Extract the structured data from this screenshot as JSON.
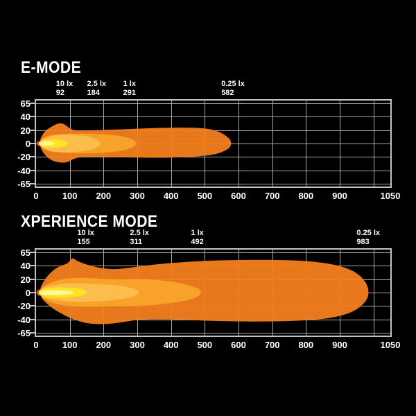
{
  "page": {
    "background": "#000000",
    "text_color": "#ffffff",
    "grid_color": "#a9a9a9",
    "axis_color": "#c3c3c3"
  },
  "chart_data": [
    {
      "type": "area",
      "title": "E-MODE",
      "xlim": [
        0,
        1050
      ],
      "x_ticks": [
        0,
        100,
        200,
        300,
        400,
        500,
        600,
        700,
        800,
        900,
        1050
      ],
      "y_ticks": [
        65,
        40,
        20,
        0,
        -20,
        -40,
        -65
      ],
      "grid": true,
      "legend": "none",
      "lux_markers": [
        {
          "label": "10 lx",
          "distance": 92
        },
        {
          "label": "2.5 lx",
          "distance": 184
        },
        {
          "label": "1 lx",
          "distance": 291
        },
        {
          "label": "0.25 lx",
          "distance": 582
        }
      ],
      "contours": [
        {
          "name": "isolux-0.25lx",
          "color": "#F5811E",
          "points": [
            [
              10,
              3
            ],
            [
              18,
              14
            ],
            [
              30,
              22
            ],
            [
              48,
              28
            ],
            [
              62,
              32
            ],
            [
              75,
              33
            ],
            [
              88,
              30
            ],
            [
              100,
              24
            ],
            [
              115,
              21
            ],
            [
              150,
              21
            ],
            [
              200,
              22
            ],
            [
              260,
              23
            ],
            [
              340,
              25
            ],
            [
              430,
              26
            ],
            [
              500,
              25
            ],
            [
              540,
              20
            ],
            [
              565,
              12
            ],
            [
              578,
              5
            ],
            [
              578,
              -5
            ],
            [
              560,
              -12
            ],
            [
              530,
              -18
            ],
            [
              480,
              -21
            ],
            [
              400,
              -23
            ],
            [
              320,
              -23
            ],
            [
              240,
              -22
            ],
            [
              170,
              -21
            ],
            [
              130,
              -22
            ],
            [
              110,
              -25
            ],
            [
              95,
              -30
            ],
            [
              80,
              -31
            ],
            [
              60,
              -30
            ],
            [
              42,
              -26
            ],
            [
              25,
              -18
            ],
            [
              14,
              -8
            ]
          ]
        },
        {
          "name": "isolux-1lx",
          "color": "#F9A52B",
          "points": [
            [
              10,
              4
            ],
            [
              30,
              12
            ],
            [
              60,
              15
            ],
            [
              100,
              16
            ],
            [
              150,
              16
            ],
            [
              200,
              15
            ],
            [
              240,
              13
            ],
            [
              270,
              10
            ],
            [
              290,
              6
            ],
            [
              296,
              2
            ],
            [
              296,
              -2
            ],
            [
              285,
              -7
            ],
            [
              260,
              -11
            ],
            [
              220,
              -14
            ],
            [
              170,
              -16
            ],
            [
              120,
              -16
            ],
            [
              70,
              -15
            ],
            [
              35,
              -12
            ],
            [
              12,
              -5
            ]
          ]
        },
        {
          "name": "isolux-2.5lx",
          "color": "#FBBE4E",
          "points": [
            [
              10,
              3
            ],
            [
              25,
              9
            ],
            [
              50,
              13
            ],
            [
              80,
              14
            ],
            [
              110,
              14
            ],
            [
              140,
              13
            ],
            [
              165,
              10
            ],
            [
              183,
              6
            ],
            [
              190,
              2
            ],
            [
              190,
              -2
            ],
            [
              180,
              -7
            ],
            [
              160,
              -11
            ],
            [
              130,
              -13
            ],
            [
              95,
              -14
            ],
            [
              60,
              -14
            ],
            [
              30,
              -11
            ],
            [
              12,
              -4
            ]
          ]
        },
        {
          "name": "origin-hotspot-edge",
          "color": "#E8611C",
          "points": [
            [
              2,
              4
            ],
            [
              20,
              4
            ],
            [
              20,
              -4
            ],
            [
              2,
              -4
            ]
          ]
        },
        {
          "name": "isolux-10lx",
          "color": "#FFE61F",
          "points": [
            [
              8,
              2
            ],
            [
              18,
              5
            ],
            [
              35,
              7
            ],
            [
              55,
              7
            ],
            [
              75,
              6
            ],
            [
              88,
              4
            ],
            [
              95,
              1.5
            ],
            [
              95,
              -1.5
            ],
            [
              87,
              -4
            ],
            [
              72,
              -6
            ],
            [
              50,
              -7
            ],
            [
              30,
              -7
            ],
            [
              15,
              -5
            ],
            [
              8,
              -2
            ]
          ]
        },
        {
          "name": "hotspot-core",
          "color": "#FFF8A8",
          "points": [
            [
              8,
              1
            ],
            [
              18,
              3
            ],
            [
              32,
              3.5
            ],
            [
              45,
              3
            ],
            [
              54,
              1.5
            ],
            [
              54,
              -1.5
            ],
            [
              44,
              -3
            ],
            [
              30,
              -3.5
            ],
            [
              16,
              -3
            ],
            [
              8,
              -1
            ]
          ]
        }
      ]
    },
    {
      "type": "area",
      "title": "XPERIENCE MODE",
      "xlim": [
        0,
        1050
      ],
      "x_ticks": [
        0,
        100,
        200,
        300,
        400,
        500,
        600,
        700,
        800,
        900,
        1050
      ],
      "y_ticks": [
        65,
        40,
        20,
        0,
        -20,
        -40,
        -65
      ],
      "grid": true,
      "legend": "none",
      "lux_markers": [
        {
          "label": "10 lx",
          "distance": 155
        },
        {
          "label": "2.5 lx",
          "distance": 311
        },
        {
          "label": "1 lx",
          "distance": 492
        },
        {
          "label": "0.25 lx",
          "distance": 983
        }
      ],
      "contours": [
        {
          "name": "isolux-0.25lx",
          "color": "#F5811E",
          "points": [
            [
              10,
              4
            ],
            [
              20,
              16
            ],
            [
              35,
              28
            ],
            [
              55,
              38
            ],
            [
              75,
              44
            ],
            [
              95,
              47
            ],
            [
              108,
              57
            ],
            [
              118,
              52
            ],
            [
              140,
              47
            ],
            [
              170,
              42
            ],
            [
              210,
              38
            ],
            [
              250,
              38
            ],
            [
              300,
              42
            ],
            [
              360,
              46
            ],
            [
              430,
              49
            ],
            [
              520,
              52
            ],
            [
              620,
              53
            ],
            [
              720,
              53
            ],
            [
              810,
              51
            ],
            [
              880,
              46
            ],
            [
              930,
              38
            ],
            [
              960,
              28
            ],
            [
              978,
              16
            ],
            [
              985,
              6
            ],
            [
              985,
              -6
            ],
            [
              975,
              -16
            ],
            [
              950,
              -28
            ],
            [
              910,
              -37
            ],
            [
              850,
              -43
            ],
            [
              760,
              -46
            ],
            [
              650,
              -47
            ],
            [
              540,
              -46
            ],
            [
              440,
              -44
            ],
            [
              360,
              -43
            ],
            [
              300,
              -44
            ],
            [
              255,
              -48
            ],
            [
              210,
              -51
            ],
            [
              165,
              -51
            ],
            [
              130,
              -47
            ],
            [
              100,
              -41
            ],
            [
              75,
              -34
            ],
            [
              50,
              -26
            ],
            [
              30,
              -17
            ],
            [
              15,
              -8
            ]
          ]
        },
        {
          "name": "isolux-1lx",
          "color": "#F9A52B",
          "points": [
            [
              10,
              5
            ],
            [
              35,
              15
            ],
            [
              70,
              21
            ],
            [
              110,
              24
            ],
            [
              150,
              24
            ],
            [
              200,
              22
            ],
            [
              250,
              21
            ],
            [
              300,
              22
            ],
            [
              350,
              21
            ],
            [
              400,
              18
            ],
            [
              440,
              14
            ],
            [
              470,
              9
            ],
            [
              488,
              4
            ],
            [
              488,
              -4
            ],
            [
              470,
              -9
            ],
            [
              435,
              -14
            ],
            [
              390,
              -18
            ],
            [
              330,
              -21
            ],
            [
              270,
              -22
            ],
            [
              210,
              -22
            ],
            [
              150,
              -23
            ],
            [
              100,
              -22
            ],
            [
              60,
              -19
            ],
            [
              30,
              -13
            ],
            [
              12,
              -6
            ]
          ]
        },
        {
          "name": "isolux-2.5lx",
          "color": "#FBBE4E",
          "points": [
            [
              10,
              4
            ],
            [
              30,
              10
            ],
            [
              60,
              13
            ],
            [
              95,
              15
            ],
            [
              135,
              15
            ],
            [
              175,
              14
            ],
            [
              215,
              13
            ],
            [
              250,
              11
            ],
            [
              280,
              8
            ],
            [
              300,
              4
            ],
            [
              305,
              1
            ],
            [
              305,
              -1
            ],
            [
              295,
              -5
            ],
            [
              270,
              -9
            ],
            [
              235,
              -12
            ],
            [
              195,
              -14
            ],
            [
              150,
              -15
            ],
            [
              105,
              -15
            ],
            [
              65,
              -13
            ],
            [
              35,
              -10
            ],
            [
              12,
              -5
            ]
          ]
        },
        {
          "name": "origin-hotspot-edge",
          "color": "#E8611C",
          "points": [
            [
              2,
              5
            ],
            [
              20,
              5
            ],
            [
              20,
              -5
            ],
            [
              2,
              -5
            ]
          ]
        },
        {
          "name": "isolux-10lx",
          "color": "#FFE61F",
          "points": [
            [
              8,
              3
            ],
            [
              20,
              6
            ],
            [
              40,
              8
            ],
            [
              65,
              8.5
            ],
            [
              90,
              8
            ],
            [
              115,
              7
            ],
            [
              138,
              5
            ],
            [
              150,
              2.5
            ],
            [
              150,
              -2.5
            ],
            [
              135,
              -5
            ],
            [
              110,
              -7
            ],
            [
              85,
              -8
            ],
            [
              60,
              -8.5
            ],
            [
              35,
              -8
            ],
            [
              18,
              -6
            ],
            [
              8,
              -3
            ]
          ]
        },
        {
          "name": "hotspot-core",
          "color": "#FFF8A8",
          "points": [
            [
              8,
              1.5
            ],
            [
              20,
              3.5
            ],
            [
              40,
              4
            ],
            [
              60,
              4
            ],
            [
              80,
              3.5
            ],
            [
              100,
              2.5
            ],
            [
              112,
              1
            ],
            [
              112,
              -1
            ],
            [
              98,
              -2.5
            ],
            [
              78,
              -3.5
            ],
            [
              55,
              -4
            ],
            [
              35,
              -4
            ],
            [
              18,
              -3.5
            ],
            [
              8,
              -1.5
            ]
          ]
        }
      ]
    }
  ]
}
